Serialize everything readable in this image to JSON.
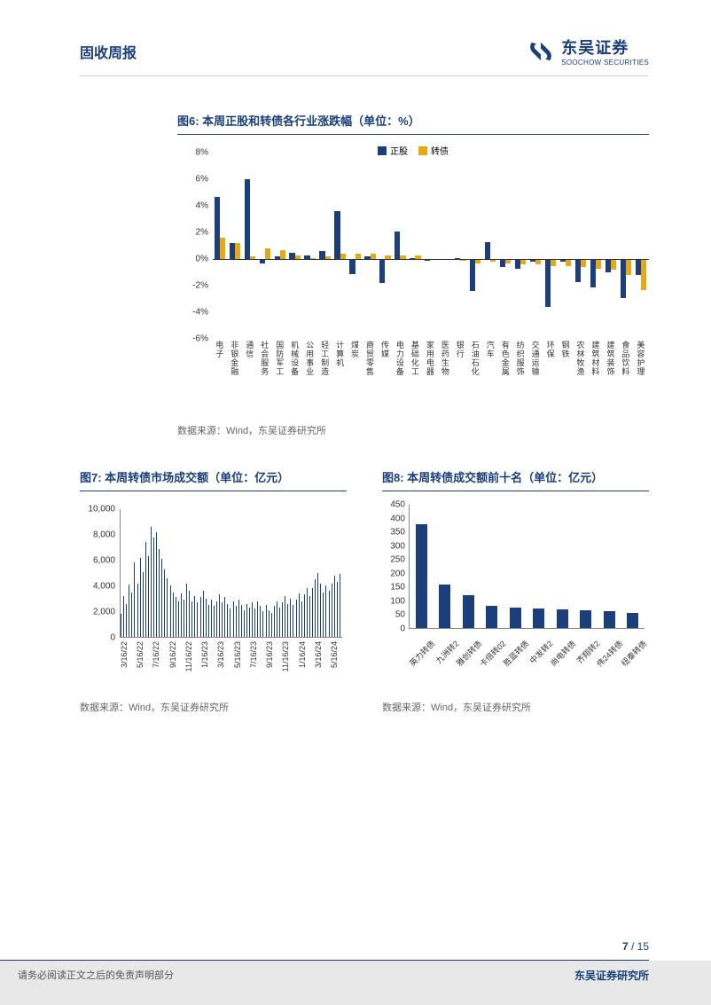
{
  "header": {
    "title": "固收周报",
    "logo_cn": "东吴证券",
    "logo_en": "SOOCHOW SECURITIES",
    "logo_color": "#1a3f7a"
  },
  "chart6": {
    "title": "图6: 本周正股和转债各行业涨跌幅（单位：%）",
    "legend": [
      "正股",
      "转债"
    ],
    "colors": {
      "stock": "#1a3f7a",
      "bond": "#e6a817"
    },
    "ymin": -6,
    "ymax": 8,
    "ystep": 2,
    "categories": [
      "电子",
      "非银金融",
      "通信",
      "社会服务",
      "国防军工",
      "机械设备",
      "公用事业",
      "轻工制造",
      "计算机",
      "煤炭",
      "商贸零售",
      "传媒",
      "电力设备",
      "基础化工",
      "家用电器",
      "医药生物",
      "银行",
      "石油石化",
      "汽车",
      "有色金属",
      "纺织服饰",
      "交通运输",
      "环保",
      "钢铁",
      "农林牧渔",
      "建筑材料",
      "建筑装饰",
      "食品饮料",
      "美容护理"
    ],
    "stock": [
      4.7,
      1.2,
      6.0,
      -0.3,
      0.2,
      0.5,
      0.3,
      0.6,
      3.6,
      -1.1,
      0.2,
      -1.8,
      2.1,
      0.1,
      -0.1,
      0.0,
      0.1,
      -2.4,
      1.3,
      -0.6,
      -0.7,
      -0.2,
      -3.6,
      -0.2,
      -1.7,
      -2.1,
      -1.0,
      -2.9,
      -1.2
    ],
    "bond": [
      1.6,
      1.2,
      0.2,
      0.8,
      0.7,
      0.3,
      0.1,
      0.2,
      0.4,
      0.4,
      0.4,
      0.3,
      0.3,
      0.3,
      0.0,
      0.0,
      -0.1,
      -0.3,
      -0.2,
      -0.3,
      -0.4,
      -0.4,
      -0.5,
      -0.5,
      -0.6,
      -0.7,
      -0.8,
      -1.2,
      -2.3
    ]
  },
  "chart7": {
    "title": "图7: 本周转债市场成交额（单位：亿元）",
    "color": "#1a3f7a",
    "ymin": 0,
    "ymax": 10000,
    "ystep": 2000,
    "xlabels": [
      "3/16/22",
      "5/16/22",
      "7/16/22",
      "9/16/22",
      "11/16/22",
      "1/16/23",
      "3/16/23",
      "5/16/23",
      "7/16/23",
      "9/16/23",
      "11/16/23",
      "1/16/24",
      "3/16/24",
      "5/16/24"
    ],
    "values": [
      1800,
      3200,
      2600,
      4100,
      3500,
      5800,
      4200,
      6200,
      5100,
      7400,
      6300,
      8600,
      7800,
      8200,
      6900,
      6100,
      5300,
      4600,
      4000,
      3500,
      3100,
      2800,
      3400,
      2900,
      4200,
      3600,
      2800,
      3200,
      2700,
      3100,
      3600,
      3000,
      2500,
      2900,
      2400,
      2800,
      3300,
      2700,
      3100,
      2600,
      2200,
      2800,
      2400,
      2900,
      2500,
      2100,
      2600,
      2300,
      2700,
      2200,
      2800,
      2400,
      2000,
      2500,
      2100,
      1900,
      2400,
      2800,
      2300,
      2700,
      3200,
      2600,
      3000,
      2500,
      2900,
      3400,
      2800,
      3300,
      3800,
      3200,
      3800,
      4500,
      5000,
      4200,
      3500,
      4000,
      3600,
      4200,
      4800,
      4300,
      4900
    ]
  },
  "chart8": {
    "title": "图8: 本周转债成交额前十名（单位：亿元）",
    "color": "#1a3f7a",
    "ymin": 0,
    "ymax": 450,
    "ystep": 50,
    "categories": [
      "英力转债",
      "九洲转2",
      "雅创转债",
      "卡倍转02",
      "胜蓝转债",
      "中发转2",
      "尚电转债",
      "齐翔转2",
      "伟24转债",
      "纽泰转债"
    ],
    "values": [
      380,
      160,
      120,
      80,
      75,
      72,
      68,
      65,
      62,
      55
    ]
  },
  "source": "数据来源：Wind，东吴证券研究所",
  "footer": {
    "page_current": "7",
    "page_total": "15",
    "disclaimer": "请务必阅读正文之后的免责声明部分",
    "org": "东吴证券研究所"
  }
}
